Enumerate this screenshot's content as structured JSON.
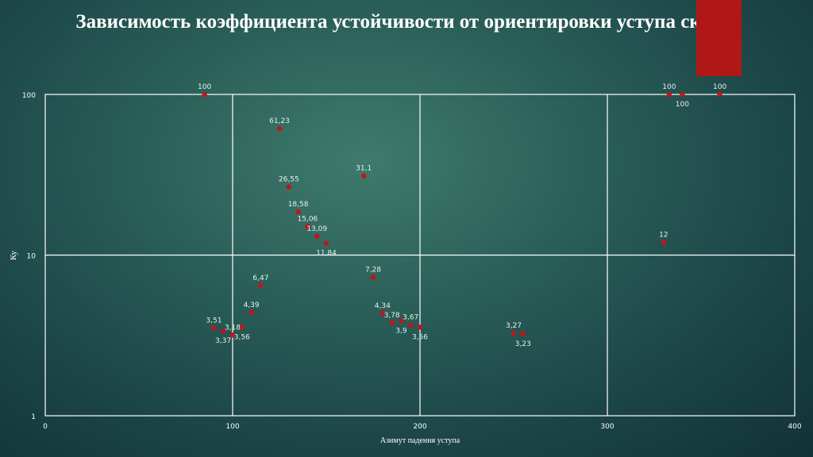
{
  "chart_data": {
    "type": "scatter",
    "title": "Зависимость коэффициента устойчивости от ориентировки уступа скалы",
    "xlabel": "Азимут падения уступа",
    "ylabel": "Ку",
    "xlim": [
      0,
      400
    ],
    "ylim": [
      1,
      100
    ],
    "yscale": "log",
    "xticks": [
      "0",
      "100",
      "200",
      "300",
      "400"
    ],
    "yticks": [
      "1",
      "10",
      "100"
    ],
    "grid": true,
    "marker_color": "#c0161a",
    "points": [
      {
        "x": 85,
        "y": 100,
        "label": "100"
      },
      {
        "x": 125,
        "y": 61.23,
        "label": "61,23"
      },
      {
        "x": 130,
        "y": 26.55,
        "label": "26,55"
      },
      {
        "x": 135,
        "y": 18.58,
        "label": "18,58"
      },
      {
        "x": 140,
        "y": 15.06,
        "label": "15,06"
      },
      {
        "x": 145,
        "y": 13.09,
        "label": "13,09"
      },
      {
        "x": 150,
        "y": 11.84,
        "label": "11,84"
      },
      {
        "x": 170,
        "y": 31.1,
        "label": "31,1"
      },
      {
        "x": 175,
        "y": 7.28,
        "label": "7,28"
      },
      {
        "x": 115,
        "y": 6.47,
        "label": "6,47"
      },
      {
        "x": 110,
        "y": 4.39,
        "label": "4,39"
      },
      {
        "x": 90,
        "y": 3.51,
        "label": "3,51"
      },
      {
        "x": 95,
        "y": 3.37,
        "label": "3,37"
      },
      {
        "x": 100,
        "y": 3.18,
        "label": "3,18"
      },
      {
        "x": 105,
        "y": 3.56,
        "label": "3,56"
      },
      {
        "x": 180,
        "y": 4.34,
        "label": "4,34"
      },
      {
        "x": 185,
        "y": 3.78,
        "label": "3,78"
      },
      {
        "x": 190,
        "y": 3.9,
        "label": "3,9"
      },
      {
        "x": 195,
        "y": 3.67,
        "label": "3,67"
      },
      {
        "x": 200,
        "y": 3.56,
        "label": "3,56"
      },
      {
        "x": 250,
        "y": 3.27,
        "label": "3,27"
      },
      {
        "x": 255,
        "y": 3.23,
        "label": "3,23"
      },
      {
        "x": 330,
        "y": 12,
        "label": "12"
      },
      {
        "x": 333,
        "y": 100,
        "label": "100"
      },
      {
        "x": 340,
        "y": 100,
        "label": "100"
      },
      {
        "x": 360,
        "y": 100,
        "label": "100"
      }
    ]
  }
}
